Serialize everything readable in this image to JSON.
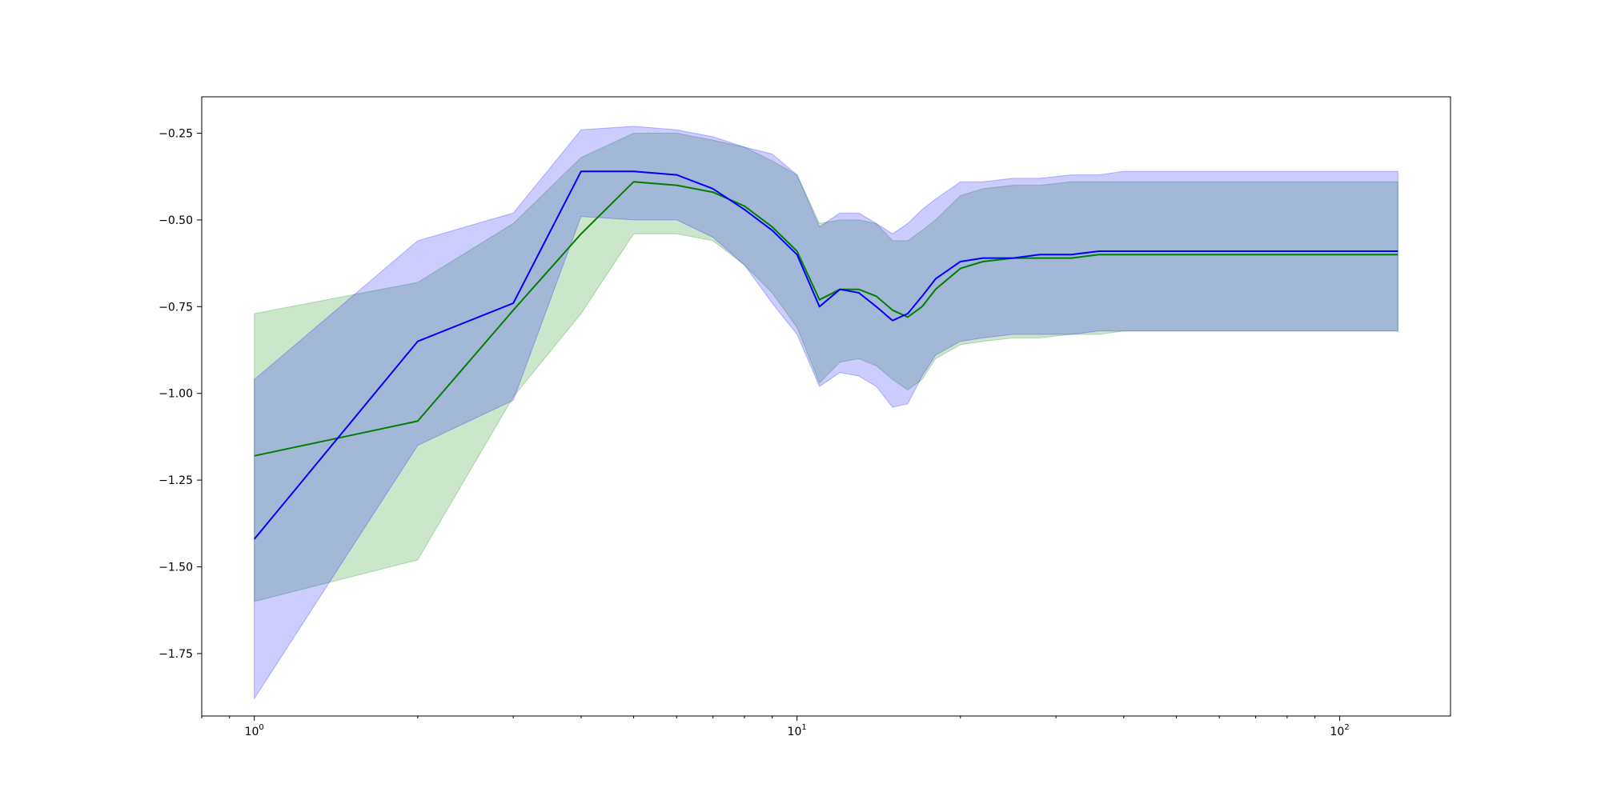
{
  "chart_data": {
    "type": "line",
    "title": "",
    "xlabel": "",
    "ylabel": "",
    "xscale": "log",
    "xlim": [
      0.8,
      160
    ],
    "ylim": [
      -1.93,
      -0.145
    ],
    "grid": false,
    "legend": false,
    "x_ticks": [
      {
        "value": 1,
        "base": "10",
        "exp": "0"
      },
      {
        "value": 10,
        "base": "10",
        "exp": "1"
      },
      {
        "value": 100,
        "base": "10",
        "exp": "2"
      }
    ],
    "y_ticks": [
      {
        "value": -0.25,
        "label": "−0.25"
      },
      {
        "value": -0.5,
        "label": "−0.50"
      },
      {
        "value": -0.75,
        "label": "−0.75"
      },
      {
        "value": -1.0,
        "label": "−1.00"
      },
      {
        "value": -1.25,
        "label": "−1.25"
      },
      {
        "value": -1.5,
        "label": "−1.50"
      },
      {
        "value": -1.75,
        "label": "−1.75"
      }
    ],
    "series": [
      {
        "color": "#008000",
        "band_color": "#008000",
        "x": [
          1,
          2,
          3,
          4,
          5,
          6,
          7,
          8,
          9,
          10,
          11,
          12,
          13,
          14,
          15,
          16,
          17,
          18,
          20,
          22,
          25,
          28,
          32,
          36,
          40,
          50,
          60,
          80,
          100,
          128
        ],
        "y": [
          -1.18,
          -1.08,
          -0.76,
          -0.54,
          -0.39,
          -0.4,
          -0.42,
          -0.46,
          -0.52,
          -0.59,
          -0.73,
          -0.7,
          -0.7,
          -0.72,
          -0.76,
          -0.78,
          -0.75,
          -0.7,
          -0.64,
          -0.62,
          -0.61,
          -0.61,
          -0.61,
          -0.6,
          -0.6,
          -0.6,
          -0.6,
          -0.6,
          -0.6,
          -0.6
        ],
        "lower": [
          -1.6,
          -1.48,
          -1.01,
          -0.77,
          -0.54,
          -0.54,
          -0.56,
          -0.63,
          -0.71,
          -0.81,
          -0.97,
          -0.91,
          -0.9,
          -0.92,
          -0.96,
          -0.99,
          -0.96,
          -0.9,
          -0.86,
          -0.85,
          -0.84,
          -0.84,
          -0.83,
          -0.83,
          -0.82,
          -0.82,
          -0.82,
          -0.82,
          -0.82,
          -0.82
        ],
        "upper": [
          -0.77,
          -0.68,
          -0.51,
          -0.32,
          -0.25,
          -0.25,
          -0.27,
          -0.29,
          -0.33,
          -0.37,
          -0.51,
          -0.5,
          -0.5,
          -0.51,
          -0.56,
          -0.56,
          -0.53,
          -0.5,
          -0.43,
          -0.41,
          -0.4,
          -0.4,
          -0.39,
          -0.39,
          -0.39,
          -0.39,
          -0.39,
          -0.39,
          -0.39,
          -0.39
        ]
      },
      {
        "color": "#0000ff",
        "band_color": "#0000ff",
        "x": [
          1,
          2,
          3,
          4,
          5,
          6,
          7,
          8,
          9,
          10,
          11,
          12,
          13,
          14,
          15,
          16,
          17,
          18,
          20,
          22,
          25,
          28,
          32,
          36,
          40,
          50,
          60,
          80,
          100,
          128
        ],
        "y": [
          -1.42,
          -0.85,
          -0.74,
          -0.36,
          -0.36,
          -0.37,
          -0.41,
          -0.47,
          -0.53,
          -0.6,
          -0.75,
          -0.7,
          -0.71,
          -0.75,
          -0.79,
          -0.77,
          -0.72,
          -0.67,
          -0.62,
          -0.61,
          -0.61,
          -0.6,
          -0.6,
          -0.59,
          -0.59,
          -0.59,
          -0.59,
          -0.59,
          -0.59,
          -0.59
        ],
        "lower": [
          -1.88,
          -1.15,
          -1.02,
          -0.49,
          -0.5,
          -0.5,
          -0.55,
          -0.63,
          -0.74,
          -0.83,
          -0.98,
          -0.94,
          -0.95,
          -0.98,
          -1.04,
          -1.03,
          -0.95,
          -0.89,
          -0.85,
          -0.84,
          -0.83,
          -0.83,
          -0.83,
          -0.82,
          -0.82,
          -0.82,
          -0.82,
          -0.82,
          -0.82,
          -0.82
        ],
        "upper": [
          -0.96,
          -0.56,
          -0.48,
          -0.24,
          -0.23,
          -0.24,
          -0.26,
          -0.29,
          -0.31,
          -0.37,
          -0.52,
          -0.48,
          -0.48,
          -0.51,
          -0.54,
          -0.51,
          -0.47,
          -0.44,
          -0.39,
          -0.39,
          -0.38,
          -0.38,
          -0.37,
          -0.37,
          -0.36,
          -0.36,
          -0.36,
          -0.36,
          -0.36,
          -0.36
        ]
      }
    ]
  }
}
